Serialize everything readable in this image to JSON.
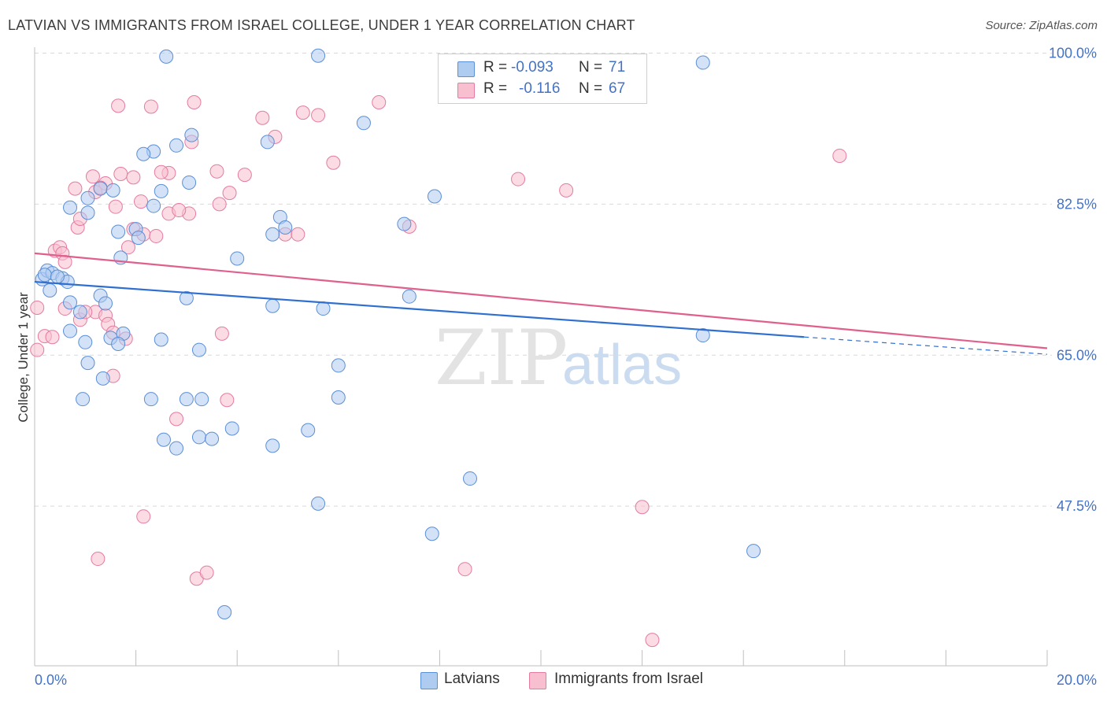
{
  "header": {
    "title": "LATVIAN VS IMMIGRANTS FROM ISRAEL COLLEGE, UNDER 1 YEAR CORRELATION CHART",
    "source": "Source: ZipAtlas.com"
  },
  "watermark": "ZIPatlas",
  "legend": {
    "series": [
      {
        "name": "Latvians",
        "r_label": "R =",
        "r_value": "-0.093",
        "n_label": "N =",
        "n_value": "71",
        "fill": "#aecbf0",
        "stroke": "#5b8fd6"
      },
      {
        "name": "Immigrants from Israel",
        "r_label": "R =",
        "r_value": "-0.116",
        "n_label": "N =",
        "n_value": "67",
        "fill": "#f7bfd0",
        "stroke": "#e57ba0"
      }
    ]
  },
  "colors": {
    "latvians_line": "#2f6fd0",
    "israel_line": "#e0608d",
    "axis_text": "#4472c4",
    "grid": "#d9d9d9"
  },
  "chart_data": {
    "type": "scatter",
    "title": "LATVIAN VS IMMIGRANTS FROM ISRAEL COLLEGE, UNDER 1 YEAR CORRELATION CHART",
    "xlabel": "",
    "ylabel": "College, Under 1 year",
    "xlim": [
      0,
      20
    ],
    "ylim": [
      29,
      100.5
    ],
    "x_tick_labels": [
      "0.0%",
      "20.0%"
    ],
    "y_ticks": [
      100,
      82.5,
      65,
      47.5
    ],
    "y_tick_labels": [
      "100.0%",
      "82.5%",
      "65.0%",
      "47.5%"
    ],
    "grid": true,
    "legend_position": "top-center",
    "series": [
      {
        "name": "Latvians",
        "trend": {
          "x0": 0,
          "y0": 73.5,
          "x1": 15.2,
          "y1": 67.1,
          "dashed_to_x": 20,
          "dashed_to_y": 65.1
        },
        "points": [
          [
            0.15,
            73.8
          ],
          [
            0.25,
            74.8
          ],
          [
            0.35,
            74.5
          ],
          [
            0.3,
            72.5
          ],
          [
            0.55,
            73.9
          ],
          [
            0.65,
            73.5
          ],
          [
            0.2,
            74.3
          ],
          [
            0.45,
            74.1
          ],
          [
            0.7,
            71.1
          ],
          [
            0.9,
            70.0
          ],
          [
            1.3,
            71.9
          ],
          [
            1.4,
            71.0
          ],
          [
            0.7,
            67.8
          ],
          [
            1.0,
            66.5
          ],
          [
            1.5,
            67.0
          ],
          [
            1.75,
            67.5
          ],
          [
            1.65,
            66.3
          ],
          [
            2.5,
            66.8
          ],
          [
            1.05,
            64.1
          ],
          [
            1.35,
            62.3
          ],
          [
            3.25,
            65.6
          ],
          [
            4.7,
            70.7
          ],
          [
            3.0,
            71.6
          ],
          [
            5.7,
            70.4
          ],
          [
            7.4,
            71.8
          ],
          [
            13.2,
            67.3
          ],
          [
            6.0,
            63.8
          ],
          [
            6.0,
            60.1
          ],
          [
            3.0,
            59.9
          ],
          [
            2.3,
            59.9
          ],
          [
            0.95,
            59.9
          ],
          [
            3.3,
            59.9
          ],
          [
            2.55,
            55.2
          ],
          [
            2.8,
            54.2
          ],
          [
            3.25,
            55.5
          ],
          [
            3.5,
            55.3
          ],
          [
            3.9,
            56.5
          ],
          [
            4.7,
            54.5
          ],
          [
            5.4,
            56.3
          ],
          [
            5.6,
            47.8
          ],
          [
            8.6,
            50.7
          ],
          [
            7.85,
            44.3
          ],
          [
            14.2,
            42.3
          ],
          [
            3.75,
            35.2
          ],
          [
            2.6,
            99.6
          ],
          [
            5.6,
            99.7
          ],
          [
            13.2,
            98.9
          ],
          [
            6.5,
            91.9
          ],
          [
            2.8,
            89.3
          ],
          [
            3.1,
            90.5
          ],
          [
            2.35,
            88.6
          ],
          [
            2.15,
            88.3
          ],
          [
            4.6,
            89.7
          ],
          [
            3.05,
            85.0
          ],
          [
            1.3,
            84.3
          ],
          [
            1.55,
            84.1
          ],
          [
            2.35,
            82.3
          ],
          [
            0.7,
            82.1
          ],
          [
            1.05,
            81.5
          ],
          [
            1.05,
            83.2
          ],
          [
            2.0,
            79.6
          ],
          [
            1.65,
            79.3
          ],
          [
            2.05,
            78.6
          ],
          [
            1.7,
            76.3
          ],
          [
            4.0,
            76.2
          ],
          [
            4.85,
            81.0
          ],
          [
            4.95,
            79.8
          ],
          [
            4.7,
            79.0
          ],
          [
            7.3,
            80.2
          ],
          [
            7.9,
            83.4
          ],
          [
            2.5,
            84.0
          ]
        ]
      },
      {
        "name": "Immigrants from Israel",
        "trend": {
          "x0": 0,
          "y0": 76.8,
          "x1": 20,
          "y1": 65.8
        },
        "points": [
          [
            0.05,
            70.5
          ],
          [
            0.05,
            65.6
          ],
          [
            0.2,
            67.2
          ],
          [
            0.35,
            67.1
          ],
          [
            0.4,
            77.1
          ],
          [
            0.5,
            77.5
          ],
          [
            0.55,
            76.8
          ],
          [
            0.6,
            75.8
          ],
          [
            0.85,
            79.8
          ],
          [
            1.2,
            70.0
          ],
          [
            1.4,
            69.6
          ],
          [
            0.9,
            69.1
          ],
          [
            1.45,
            68.6
          ],
          [
            1.55,
            67.6
          ],
          [
            1.8,
            66.9
          ],
          [
            1.55,
            62.6
          ],
          [
            0.9,
            80.8
          ],
          [
            1.6,
            82.2
          ],
          [
            1.95,
            79.6
          ],
          [
            2.15,
            79.0
          ],
          [
            2.4,
            78.8
          ],
          [
            2.65,
            81.4
          ],
          [
            3.05,
            81.4
          ],
          [
            1.85,
            77.5
          ],
          [
            1.2,
            83.9
          ],
          [
            1.4,
            84.9
          ],
          [
            1.7,
            86.0
          ],
          [
            1.15,
            85.7
          ],
          [
            0.8,
            84.3
          ],
          [
            1.95,
            85.6
          ],
          [
            2.65,
            86.1
          ],
          [
            2.5,
            86.2
          ],
          [
            2.3,
            93.8
          ],
          [
            3.15,
            94.3
          ],
          [
            3.1,
            89.7
          ],
          [
            1.65,
            93.9
          ],
          [
            4.15,
            85.9
          ],
          [
            3.65,
            82.5
          ],
          [
            3.85,
            83.8
          ],
          [
            3.6,
            86.3
          ],
          [
            4.75,
            90.3
          ],
          [
            4.5,
            92.5
          ],
          [
            5.3,
            93.1
          ],
          [
            5.6,
            92.8
          ],
          [
            5.9,
            87.3
          ],
          [
            6.8,
            94.3
          ],
          [
            9.55,
            85.4
          ],
          [
            10.5,
            84.1
          ],
          [
            15.9,
            88.1
          ],
          [
            7.4,
            79.9
          ],
          [
            4.95,
            79.0
          ],
          [
            3.7,
            67.5
          ],
          [
            3.8,
            59.8
          ],
          [
            2.8,
            57.6
          ],
          [
            2.15,
            46.3
          ],
          [
            1.25,
            41.4
          ],
          [
            3.2,
            39.1
          ],
          [
            3.4,
            39.8
          ],
          [
            8.5,
            40.2
          ],
          [
            12.0,
            47.4
          ],
          [
            12.2,
            32.0
          ],
          [
            2.1,
            82.8
          ],
          [
            1.0,
            70.0
          ],
          [
            2.85,
            81.8
          ],
          [
            5.2,
            79.0
          ],
          [
            0.6,
            70.4
          ],
          [
            1.3,
            84.4
          ]
        ]
      }
    ]
  }
}
